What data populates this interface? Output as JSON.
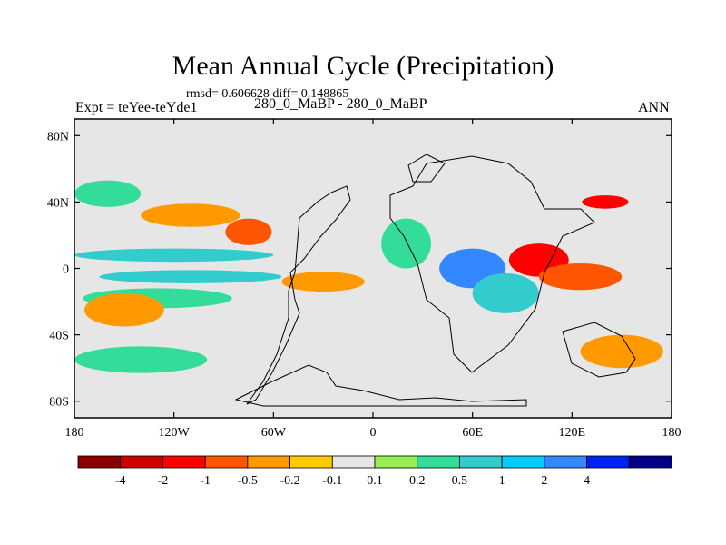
{
  "chart_data": {
    "type": "heatmap",
    "title": "Mean Annual Cycle (Precipitation)",
    "stats_line": "rmsd= 0.606628 diff= 0.148865",
    "left_label": "Expt = teYee-teYde1",
    "center_label": "280_0_MaBP - 280_0_MaBP",
    "right_label": "ANN",
    "x_axis": {
      "range": [
        -180,
        180
      ],
      "ticks": [
        {
          "value": -180,
          "label": "180"
        },
        {
          "value": -120,
          "label": "120W"
        },
        {
          "value": -60,
          "label": "60W"
        },
        {
          "value": 0,
          "label": "0"
        },
        {
          "value": 60,
          "label": "60E"
        },
        {
          "value": 120,
          "label": "120E"
        },
        {
          "value": 180,
          "label": "180"
        }
      ]
    },
    "y_axis": {
      "range": [
        -90,
        90
      ],
      "ticks": [
        {
          "value": 80,
          "label": "80N"
        },
        {
          "value": 40,
          "label": "40N"
        },
        {
          "value": 0,
          "label": "0"
        },
        {
          "value": -40,
          "label": "40S"
        },
        {
          "value": -80,
          "label": "80S"
        }
      ]
    },
    "colorbar": {
      "colors": [
        "#8b0000",
        "#cd0000",
        "#ff0000",
        "#ff5500",
        "#ff9900",
        "#ffcc00",
        "#e6e6e6",
        "#99ee55",
        "#33dd99",
        "#33cccc",
        "#00ccff",
        "#3388ff",
        "#0022ee",
        "#000088"
      ],
      "labels": [
        "-4",
        "-2",
        "-1",
        "-0.5",
        "-0.2",
        "-0.1",
        "0.1",
        "0.2",
        "0.5",
        "1",
        "2",
        "4"
      ]
    },
    "anomaly_regions": [
      {
        "lon": -120,
        "lat": 8,
        "value": 0.6,
        "rx": 60,
        "ry": 4
      },
      {
        "lon": -110,
        "lat": -5,
        "value": 0.5,
        "rx": 55,
        "ry": 4
      },
      {
        "lon": -130,
        "lat": -18,
        "value": 0.3,
        "rx": 45,
        "ry": 6
      },
      {
        "lon": -75,
        "lat": 22,
        "value": -0.6,
        "rx": 14,
        "ry": 8
      },
      {
        "lon": -150,
        "lat": -25,
        "value": -0.3,
        "rx": 24,
        "ry": 10
      },
      {
        "lon": -110,
        "lat": 32,
        "value": -0.3,
        "rx": 30,
        "ry": 7
      },
      {
        "lon": -160,
        "lat": 45,
        "value": 0.2,
        "rx": 20,
        "ry": 8
      },
      {
        "lon": 60,
        "lat": 0,
        "value": 2.2,
        "rx": 20,
        "ry": 12
      },
      {
        "lon": 80,
        "lat": -15,
        "value": 0.6,
        "rx": 20,
        "ry": 12
      },
      {
        "lon": 100,
        "lat": 5,
        "value": -1.5,
        "rx": 18,
        "ry": 10
      },
      {
        "lon": 125,
        "lat": -5,
        "value": -0.8,
        "rx": 25,
        "ry": 8
      },
      {
        "lon": 140,
        "lat": 40,
        "value": -1.2,
        "rx": 14,
        "ry": 4
      },
      {
        "lon": -30,
        "lat": -8,
        "value": -0.3,
        "rx": 25,
        "ry": 6
      },
      {
        "lon": 20,
        "lat": 15,
        "value": 0.3,
        "rx": 15,
        "ry": 15
      },
      {
        "lon": -140,
        "lat": -55,
        "value": 0.2,
        "rx": 40,
        "ry": 8
      },
      {
        "lon": 150,
        "lat": -50,
        "value": -0.4,
        "rx": 25,
        "ry": 10
      }
    ]
  }
}
